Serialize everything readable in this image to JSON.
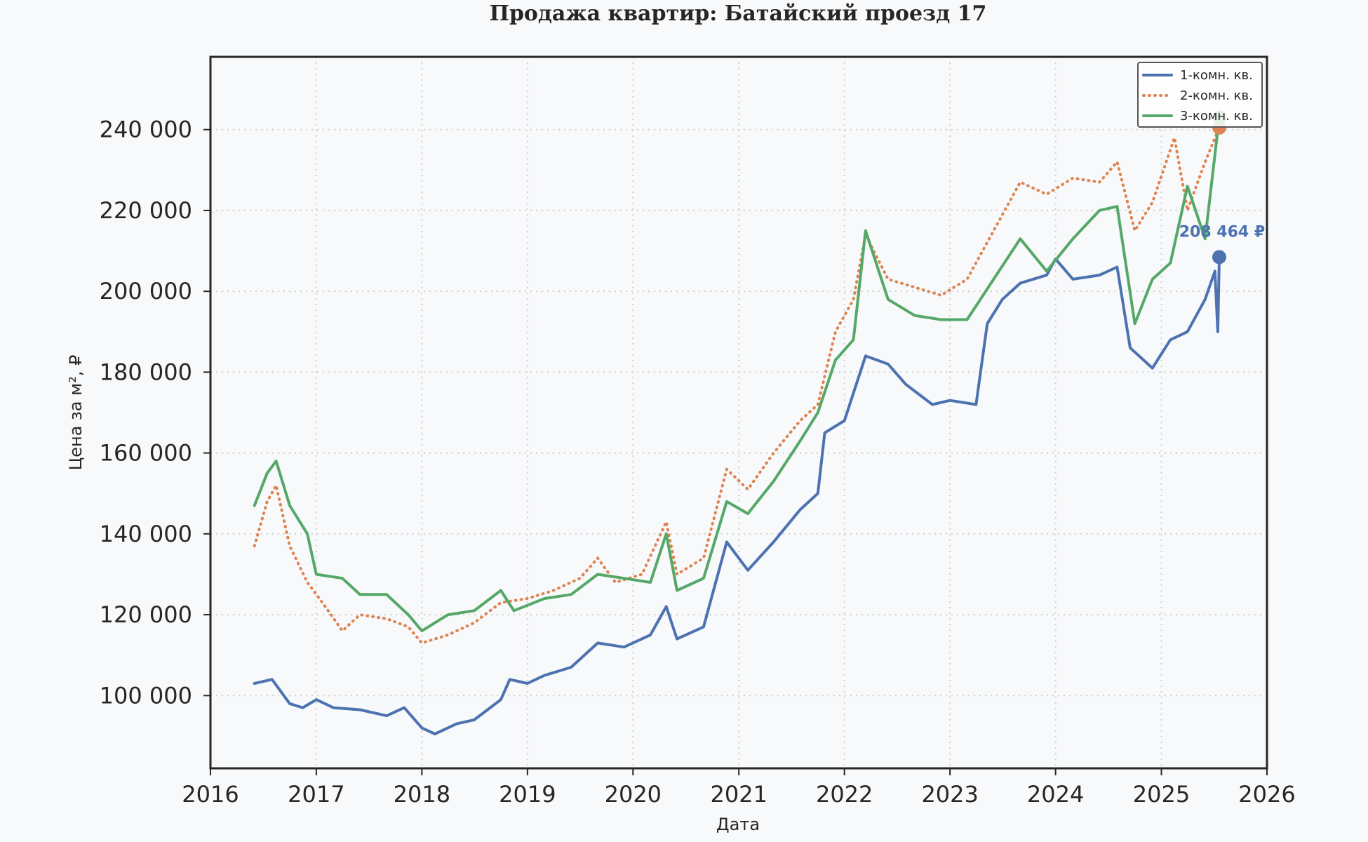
{
  "chart_data": {
    "type": "line",
    "title": "Продажа квартир: Батайский проезд 17",
    "xlabel": "Дата",
    "ylabel": "Цена за м², ₽",
    "xlim": [
      "2016-01-01",
      "2026-01-01"
    ],
    "ylim": [
      82000,
      258000
    ],
    "x_ticks": [
      "2016",
      "2017",
      "2018",
      "2019",
      "2020",
      "2021",
      "2022",
      "2023",
      "2024",
      "2025",
      "2026"
    ],
    "y_ticks": [
      {
        "value": 100000,
        "label": "100 000"
      },
      {
        "value": 120000,
        "label": "120 000"
      },
      {
        "value": 140000,
        "label": "140 000"
      },
      {
        "value": 160000,
        "label": "160 000"
      },
      {
        "value": 180000,
        "label": "180 000"
      },
      {
        "value": 200000,
        "label": "200 000"
      },
      {
        "value": 220000,
        "label": "220 000"
      },
      {
        "value": 240000,
        "label": "240 000"
      }
    ],
    "grid": true,
    "legend_position": "top-right",
    "series": [
      {
        "name": "1-комн. кв.",
        "color": "#4c72b0",
        "style": "solid",
        "points": [
          [
            "2016-06-01",
            103000
          ],
          [
            "2016-08-01",
            104000
          ],
          [
            "2016-10-01",
            98000
          ],
          [
            "2016-11-15",
            97000
          ],
          [
            "2017-01-01",
            99000
          ],
          [
            "2017-03-01",
            97000
          ],
          [
            "2017-06-01",
            96500
          ],
          [
            "2017-09-01",
            95000
          ],
          [
            "2017-11-01",
            97000
          ],
          [
            "2018-01-01",
            92000
          ],
          [
            "2018-02-15",
            90500
          ],
          [
            "2018-05-01",
            93000
          ],
          [
            "2018-07-01",
            94000
          ],
          [
            "2018-10-01",
            99000
          ],
          [
            "2018-11-01",
            104000
          ],
          [
            "2019-01-01",
            103000
          ],
          [
            "2019-03-01",
            105000
          ],
          [
            "2019-06-01",
            107000
          ],
          [
            "2019-09-01",
            113000
          ],
          [
            "2019-12-01",
            112000
          ],
          [
            "2020-03-01",
            115000
          ],
          [
            "2020-04-25",
            122000
          ],
          [
            "2020-06-01",
            114000
          ],
          [
            "2020-09-01",
            117000
          ],
          [
            "2020-11-20",
            138000
          ],
          [
            "2021-02-01",
            131000
          ],
          [
            "2021-05-01",
            138000
          ],
          [
            "2021-08-01",
            146000
          ],
          [
            "2021-10-01",
            150000
          ],
          [
            "2021-10-25",
            165000
          ],
          [
            "2022-01-01",
            168000
          ],
          [
            "2022-03-15",
            184000
          ],
          [
            "2022-06-01",
            182000
          ],
          [
            "2022-08-01",
            177000
          ],
          [
            "2022-11-01",
            172000
          ],
          [
            "2023-01-01",
            173000
          ],
          [
            "2023-04-01",
            172000
          ],
          [
            "2023-05-10",
            192000
          ],
          [
            "2023-07-01",
            198000
          ],
          [
            "2023-09-01",
            202000
          ],
          [
            "2023-12-01",
            204000
          ],
          [
            "2024-01-01",
            208000
          ],
          [
            "2024-03-01",
            203000
          ],
          [
            "2024-06-01",
            204000
          ],
          [
            "2024-08-01",
            206000
          ],
          [
            "2024-09-15",
            186000
          ],
          [
            "2024-12-01",
            181000
          ],
          [
            "2025-02-01",
            188000
          ],
          [
            "2025-04-01",
            190000
          ],
          [
            "2025-06-01",
            198000
          ],
          [
            "2025-07-05",
            205000
          ],
          [
            "2025-07-15",
            190000
          ],
          [
            "2025-07-20",
            208464
          ]
        ]
      },
      {
        "name": "2-комн. кв.",
        "color": "#dd8452",
        "style": "dotted",
        "points": [
          [
            "2016-06-01",
            137000
          ],
          [
            "2016-07-15",
            148000
          ],
          [
            "2016-08-15",
            152000
          ],
          [
            "2016-10-01",
            137000
          ],
          [
            "2016-12-01",
            128000
          ],
          [
            "2017-02-01",
            122000
          ],
          [
            "2017-04-01",
            116000
          ],
          [
            "2017-06-01",
            120000
          ],
          [
            "2017-09-01",
            119000
          ],
          [
            "2017-11-15",
            117000
          ],
          [
            "2018-01-01",
            113000
          ],
          [
            "2018-04-01",
            115000
          ],
          [
            "2018-07-01",
            118000
          ],
          [
            "2018-10-01",
            123000
          ],
          [
            "2019-01-01",
            124000
          ],
          [
            "2019-04-01",
            126000
          ],
          [
            "2019-07-01",
            129000
          ],
          [
            "2019-09-01",
            134000
          ],
          [
            "2019-11-01",
            128000
          ],
          [
            "2020-02-01",
            130000
          ],
          [
            "2020-04-25",
            143000
          ],
          [
            "2020-06-01",
            130000
          ],
          [
            "2020-09-01",
            134000
          ],
          [
            "2020-11-20",
            156000
          ],
          [
            "2021-02-01",
            151000
          ],
          [
            "2021-05-01",
            160000
          ],
          [
            "2021-08-01",
            168000
          ],
          [
            "2021-10-01",
            172000
          ],
          [
            "2021-12-01",
            190000
          ],
          [
            "2022-02-01",
            198000
          ],
          [
            "2022-03-15",
            214000
          ],
          [
            "2022-06-01",
            203000
          ],
          [
            "2022-09-01",
            201000
          ],
          [
            "2022-12-01",
            199000
          ],
          [
            "2023-03-01",
            203000
          ],
          [
            "2023-06-01",
            215000
          ],
          [
            "2023-09-01",
            227000
          ],
          [
            "2023-12-01",
            224000
          ],
          [
            "2024-03-01",
            228000
          ],
          [
            "2024-06-01",
            227000
          ],
          [
            "2024-08-01",
            232000
          ],
          [
            "2024-10-01",
            215000
          ],
          [
            "2024-12-01",
            222000
          ],
          [
            "2025-02-15",
            238000
          ],
          [
            "2025-04-01",
            220000
          ],
          [
            "2025-06-01",
            232000
          ],
          [
            "2025-07-20",
            240500
          ]
        ]
      },
      {
        "name": "3-комн. кв.",
        "color": "#55a868",
        "style": "solid",
        "points": [
          [
            "2016-06-01",
            147000
          ],
          [
            "2016-07-15",
            155000
          ],
          [
            "2016-08-15",
            158000
          ],
          [
            "2016-10-01",
            147000
          ],
          [
            "2016-12-01",
            140000
          ],
          [
            "2017-01-01",
            130000
          ],
          [
            "2017-04-01",
            129000
          ],
          [
            "2017-06-01",
            125000
          ],
          [
            "2017-09-01",
            125000
          ],
          [
            "2017-11-15",
            120000
          ],
          [
            "2018-01-01",
            116000
          ],
          [
            "2018-04-01",
            120000
          ],
          [
            "2018-07-01",
            121000
          ],
          [
            "2018-10-01",
            126000
          ],
          [
            "2018-11-15",
            121000
          ],
          [
            "2019-03-01",
            124000
          ],
          [
            "2019-06-01",
            125000
          ],
          [
            "2019-09-01",
            130000
          ],
          [
            "2019-12-01",
            129000
          ],
          [
            "2020-03-01",
            128000
          ],
          [
            "2020-04-25",
            140000
          ],
          [
            "2020-06-01",
            126000
          ],
          [
            "2020-09-01",
            129000
          ],
          [
            "2020-11-20",
            148000
          ],
          [
            "2021-02-01",
            145000
          ],
          [
            "2021-05-01",
            153000
          ],
          [
            "2021-08-01",
            163000
          ],
          [
            "2021-10-01",
            170000
          ],
          [
            "2021-12-01",
            183000
          ],
          [
            "2022-02-01",
            188000
          ],
          [
            "2022-03-15",
            215000
          ],
          [
            "2022-06-01",
            198000
          ],
          [
            "2022-09-01",
            194000
          ],
          [
            "2022-12-01",
            193000
          ],
          [
            "2023-03-01",
            193000
          ],
          [
            "2023-06-01",
            203000
          ],
          [
            "2023-09-01",
            213000
          ],
          [
            "2023-12-01",
            205000
          ],
          [
            "2024-03-01",
            213000
          ],
          [
            "2024-06-01",
            220000
          ],
          [
            "2024-08-01",
            221000
          ],
          [
            "2024-10-01",
            192000
          ],
          [
            "2024-12-01",
            203000
          ],
          [
            "2025-02-01",
            207000
          ],
          [
            "2025-04-01",
            226000
          ],
          [
            "2025-06-01",
            213000
          ],
          [
            "2025-07-20",
            243000
          ]
        ]
      }
    ],
    "annotation": {
      "text": "208 464 ₽",
      "date": "2025-07-20",
      "value": 208464,
      "color": "#4c72b0"
    }
  }
}
